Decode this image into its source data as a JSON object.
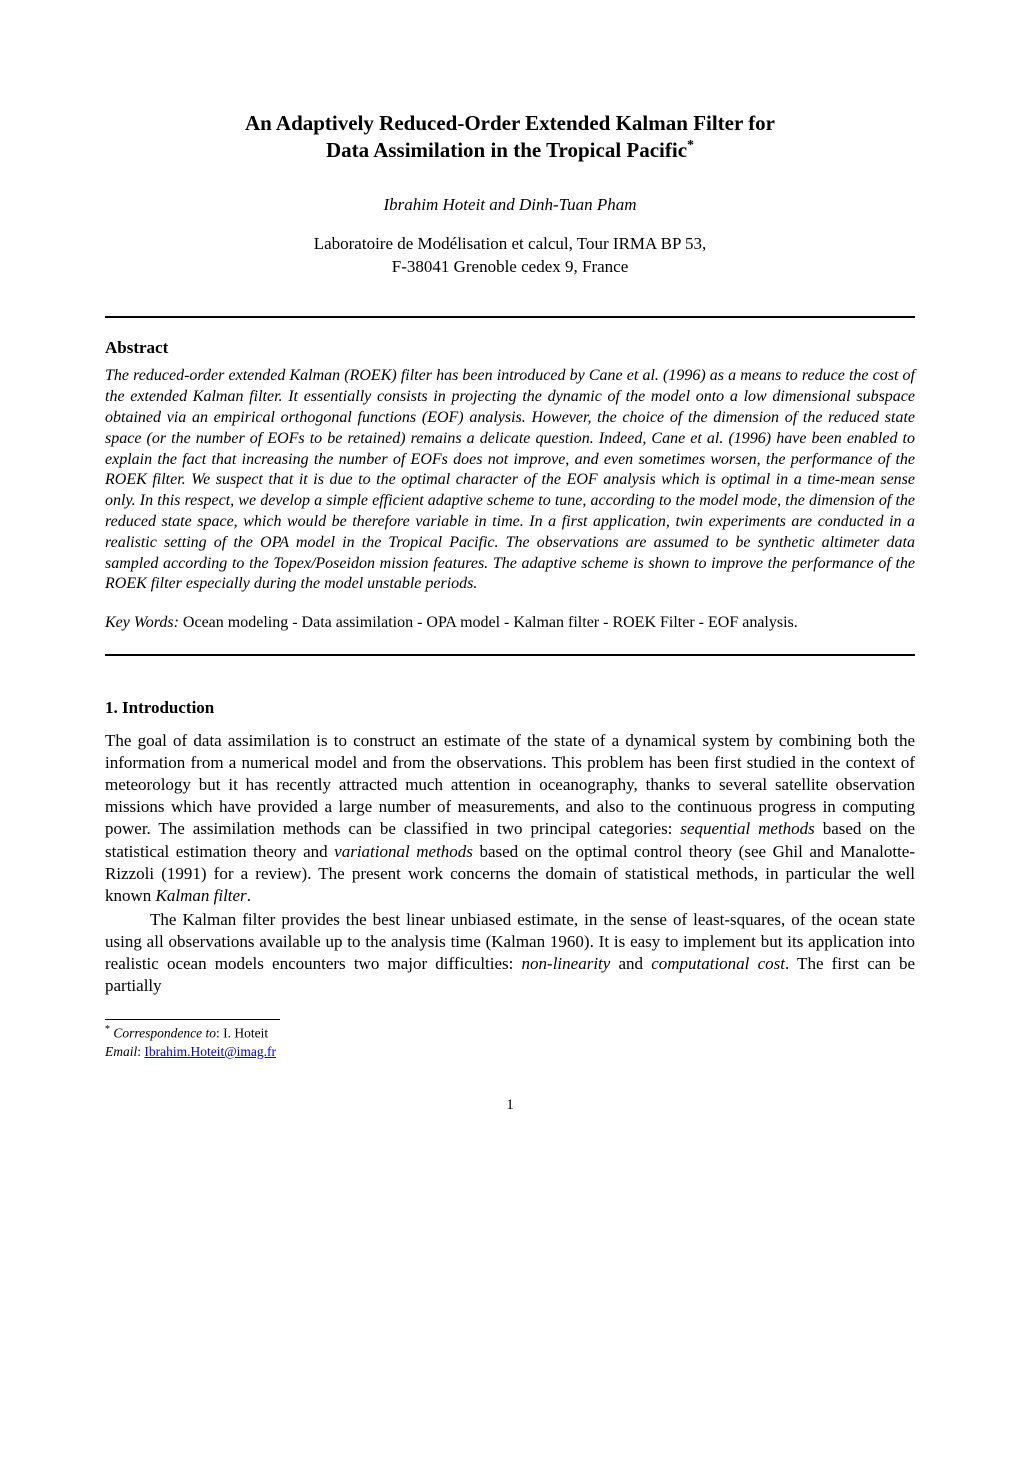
{
  "title": {
    "line1": "An Adaptively Reduced-Order Extended Kalman Filter for",
    "line2": "Data Assimilation in the Tropical Pacific",
    "superscript": "*"
  },
  "authors": "Ibrahim Hoteit  and  Dinh-Tuan Pham",
  "affiliation": {
    "line1": "Laboratoire de Modélisation et calcul, Tour IRMA BP 53,",
    "line2": "F-38041 Grenoble cedex 9, France"
  },
  "abstract": {
    "heading": "Abstract",
    "body": "The reduced-order extended Kalman (ROEK) filter has been introduced by Cane et al. (1996) as a means to reduce the cost of the extended Kalman filter. It essentially consists in projecting the dynamic of the model onto a low dimensional subspace obtained via an empirical orthogonal functions (EOF) analysis. However, the choice of the dimension of the reduced state space (or the number of EOFs to be retained) remains a delicate question. Indeed, Cane et al. (1996) have been enabled to explain the fact that increasing the number of EOFs does not improve, and even sometimes worsen, the performance of the ROEK filter. We suspect that it is due to the optimal character of the EOF analysis which is optimal in a time-mean sense only. In this respect, we develop a simple efficient adaptive scheme to tune, according to the model mode, the dimension of the reduced state space, which would be therefore variable in time. In a first application, twin experiments are conducted in a realistic setting of the OPA model in the Tropical Pacific. The observations are assumed to be synthetic altimeter data sampled according to the Topex/Poseidon mission features. The adaptive scheme is shown to improve the performance of the ROEK filter especially during the model unstable periods."
  },
  "keywords": {
    "label": "Key Words:",
    "text": " Ocean modeling - Data assimilation - OPA model - Kalman filter - ROEK Filter - EOF analysis."
  },
  "section1": {
    "heading": "1.   Introduction",
    "para1_parts": {
      "t1": "The goal of data assimilation is to construct an estimate of the state of a dynamical system by combining both the information from a numerical model and from the observations. This problem has been first studied in the context of meteorology but it has recently attracted much attention in oceanography, thanks to several satellite observation missions which have provided a large number of measurements, and also to the continuous progress in computing power. The assimilation methods can be classified in two principal categories: ",
      "i1": "sequential methods",
      "t2": " based on the statistical estimation theory and ",
      "i2": "variational methods",
      "t3": " based on the optimal control theory (see Ghil and Manalotte-Rizzoli (1991) for a review). The present work concerns the domain of statistical methods, in particular the well known ",
      "i3": "Kalman filter",
      "t4": "."
    },
    "para2_parts": {
      "t1": "The Kalman filter provides the best linear unbiased estimate, in the sense of least-squares, of the ocean state using all observations available up to the analysis time (Kalman 1960). It is easy to implement but its application into realistic ocean models encounters two major difficulties: ",
      "i1": "non-linearity",
      "t2": " and ",
      "i2": "computational cost",
      "t3": ". The first can be partially"
    }
  },
  "footnote": {
    "sup": "*",
    "corr_label": " Correspondence to",
    "corr_text": ": I. Hoteit",
    "email_label": "  Email",
    "email_sep": ": ",
    "email": "Ibrahim.Hoteit@imag.fr"
  },
  "page_number": "1"
}
